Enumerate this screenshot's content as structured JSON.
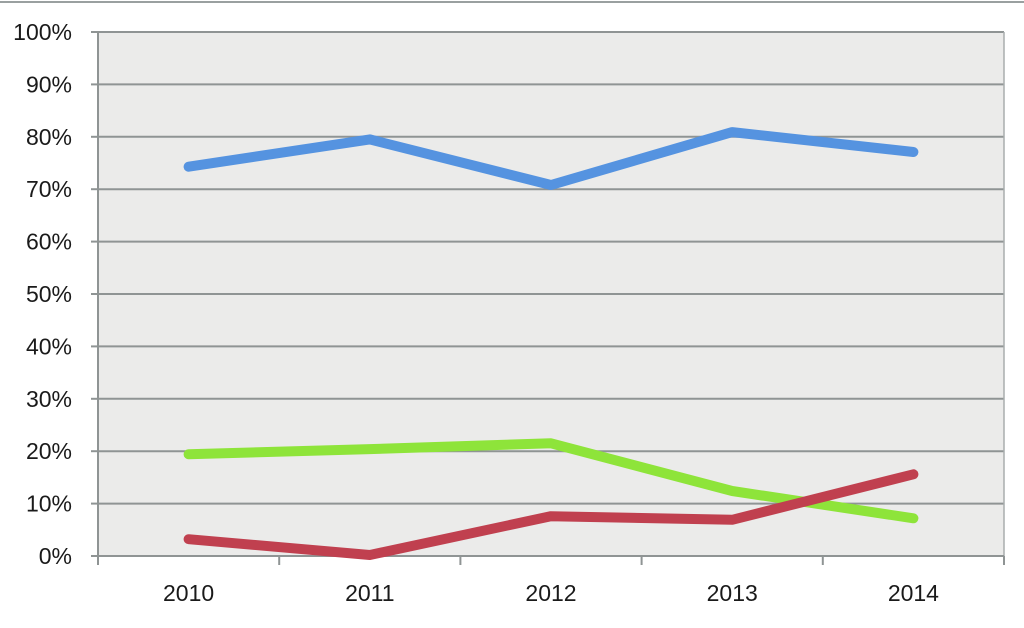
{
  "chart_data": {
    "type": "line",
    "title": "",
    "xlabel": "",
    "ylabel": "",
    "categories": [
      "2010",
      "2011",
      "2012",
      "2013",
      "2014"
    ],
    "y_ticks": [
      "0%",
      "10%",
      "20%",
      "30%",
      "40%",
      "50%",
      "60%",
      "70%",
      "80%",
      "90%",
      "100%"
    ],
    "ylim": [
      0,
      100
    ],
    "y_unit": "%",
    "grid": true,
    "legend": "none",
    "plot_background": "#ebebea",
    "series": [
      {
        "values": [
          74.3,
          79.5,
          70.8,
          80.9,
          77.1
        ],
        "color": "#5593e0"
      },
      {
        "values": [
          19.4,
          20.4,
          21.5,
          12.4,
          7.2
        ],
        "color": "#8ee43a"
      },
      {
        "values": [
          3.2,
          0.2,
          7.6,
          6.9,
          15.6
        ],
        "color": "#c0404f"
      }
    ]
  }
}
